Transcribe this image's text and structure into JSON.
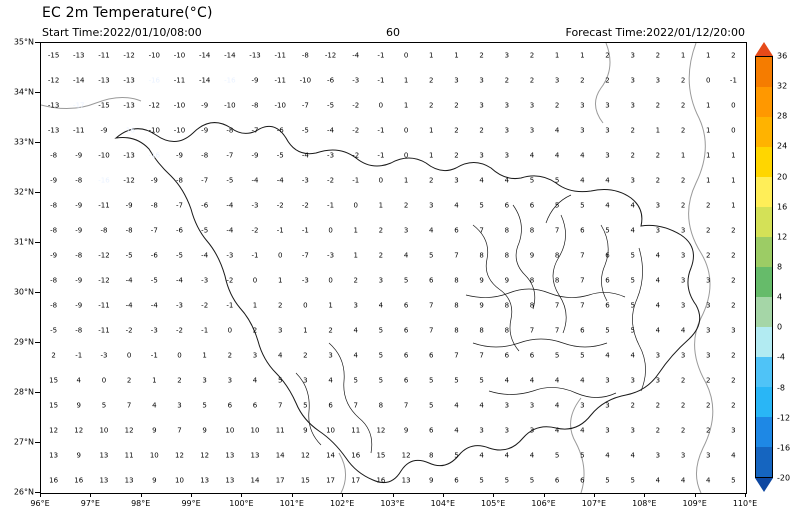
{
  "header": {
    "title": "EC 2m Temperature(°C)",
    "start_time": "Start Time:2022/01/10/08:00",
    "lead_hour": "60",
    "forecast_time": "Forecast Time:2022/01/12/20:00"
  },
  "axes": {
    "x_ticks": [
      "96°E",
      "97°E",
      "98°E",
      "99°E",
      "100°E",
      "101°E",
      "102°E",
      "103°E",
      "104°E",
      "105°E",
      "106°E",
      "107°E",
      "108°E",
      "109°E",
      "110°E"
    ],
    "y_ticks": [
      "35°N",
      "34°N",
      "33°N",
      "32°N",
      "31°N",
      "30°N",
      "29°N",
      "28°N",
      "27°N",
      "26°N"
    ]
  },
  "colorbar": {
    "labels": [
      "36",
      "32",
      "28",
      "24",
      "20",
      "16",
      "12",
      "8",
      "4",
      "0",
      "-4",
      "-8",
      "-12",
      "-16",
      "-20"
    ],
    "colors": [
      "#f57c00",
      "#ff9800",
      "#ffb300",
      "#ffd600",
      "#ffee58",
      "#d4e157",
      "#9ccc65",
      "#66bb6a",
      "#a5d6a7",
      "#b2ebf2",
      "#4fc3f7",
      "#29b6f6",
      "#1e88e5",
      "#1565c0"
    ],
    "arrow_top": "#e64a19",
    "arrow_bottom": "#0d47a1"
  },
  "chart_data": {
    "type": "heatmap",
    "title": "EC 2m Temperature(°C)",
    "units": "°C",
    "x_range": [
      96,
      110
    ],
    "y_range": [
      26,
      35
    ],
    "grid_step": 0.5,
    "grid_lon_start": 96.25,
    "grid_lat_start": 34.75,
    "colorbar_levels": [
      -20,
      -16,
      -12,
      -8,
      -4,
      0,
      4,
      8,
      12,
      16,
      20,
      24,
      28,
      32,
      36
    ],
    "legend_position": "right",
    "values": [
      [
        -15,
        -13,
        -11,
        -12,
        -10,
        -10,
        -14,
        -14,
        -13,
        -11,
        -8,
        -12,
        -4,
        -1,
        0,
        1,
        1,
        2,
        3,
        2,
        1,
        1,
        2,
        3,
        2,
        1,
        1,
        2
      ],
      [
        -12,
        -14,
        -13,
        -13,
        -16,
        -11,
        -14,
        -16,
        -9,
        -11,
        -10,
        -6,
        -3,
        -1,
        1,
        2,
        3,
        3,
        2,
        2,
        3,
        2,
        2,
        3,
        3,
        2,
        0,
        -1
      ],
      [
        -13,
        -17,
        -15,
        -13,
        -12,
        -10,
        -9,
        -10,
        -8,
        -10,
        -7,
        -5,
        -2,
        0,
        1,
        2,
        2,
        3,
        3,
        3,
        2,
        3,
        3,
        3,
        2,
        2,
        1,
        0
      ],
      [
        -13,
        -11,
        -9,
        -16,
        -10,
        -10,
        -9,
        -8,
        -7,
        -6,
        -5,
        -4,
        -2,
        -1,
        0,
        1,
        2,
        2,
        3,
        3,
        4,
        3,
        3,
        2,
        1,
        2,
        1,
        0
      ],
      [
        -8,
        -9,
        -10,
        -13,
        -16,
        -9,
        -8,
        -7,
        -9,
        -5,
        -4,
        -3,
        -2,
        -1,
        0,
        1,
        2,
        3,
        3,
        4,
        4,
        4,
        3,
        2,
        2,
        1,
        1,
        1
      ],
      [
        -9,
        -8,
        -16,
        -12,
        -9,
        -8,
        -7,
        -5,
        -4,
        -4,
        -3,
        -2,
        -1,
        0,
        1,
        2,
        3,
        4,
        4,
        5,
        5,
        4,
        4,
        3,
        2,
        2,
        1,
        1
      ],
      [
        -8,
        -9,
        -11,
        -9,
        -8,
        -7,
        -6,
        -4,
        -3,
        -2,
        -2,
        -1,
        0,
        1,
        2,
        3,
        4,
        5,
        6,
        6,
        5,
        5,
        4,
        4,
        3,
        2,
        2,
        1
      ],
      [
        -8,
        -9,
        -8,
        -8,
        -7,
        -6,
        -5,
        -4,
        -2,
        -1,
        -1,
        0,
        1,
        2,
        3,
        4,
        6,
        7,
        8,
        8,
        7,
        6,
        5,
        4,
        3,
        3,
        2,
        2
      ],
      [
        -9,
        -8,
        -12,
        -5,
        -6,
        -5,
        -4,
        -3,
        -1,
        0,
        -7,
        -3,
        1,
        2,
        4,
        5,
        7,
        8,
        8,
        9,
        8,
        7,
        6,
        5,
        4,
        3,
        2,
        2
      ],
      [
        -8,
        -9,
        -12,
        -4,
        -5,
        -4,
        -3,
        -2,
        0,
        1,
        -3,
        0,
        2,
        3,
        5,
        6,
        8,
        9,
        9,
        8,
        8,
        7,
        6,
        5,
        4,
        3,
        3,
        2
      ],
      [
        -8,
        -9,
        -11,
        -4,
        -4,
        -3,
        -2,
        -1,
        1,
        2,
        0,
        1,
        3,
        4,
        6,
        7,
        8,
        9,
        8,
        8,
        7,
        7,
        6,
        5,
        4,
        3,
        3,
        2
      ],
      [
        -5,
        -8,
        -11,
        -2,
        -3,
        -2,
        -1,
        0,
        2,
        3,
        1,
        2,
        4,
        5,
        6,
        7,
        8,
        8,
        8,
        7,
        7,
        6,
        5,
        5,
        4,
        4,
        3,
        3
      ],
      [
        2,
        -1,
        -3,
        0,
        -1,
        0,
        1,
        2,
        3,
        4,
        2,
        3,
        4,
        5,
        6,
        6,
        7,
        7,
        6,
        6,
        5,
        5,
        4,
        4,
        3,
        3,
        3,
        2
      ],
      [
        15,
        4,
        0,
        2,
        1,
        2,
        3,
        3,
        4,
        5,
        3,
        4,
        5,
        5,
        6,
        5,
        5,
        5,
        4,
        4,
        4,
        4,
        3,
        3,
        3,
        2,
        2,
        2
      ],
      [
        15,
        9,
        5,
        7,
        4,
        3,
        5,
        6,
        6,
        7,
        5,
        6,
        7,
        8,
        7,
        5,
        4,
        4,
        3,
        3,
        4,
        3,
        3,
        2,
        2,
        2,
        2,
        2
      ],
      [
        12,
        12,
        10,
        12,
        9,
        7,
        9,
        10,
        10,
        11,
        9,
        10,
        11,
        12,
        9,
        6,
        4,
        3,
        3,
        3,
        4,
        4,
        3,
        3,
        2,
        2,
        2,
        3
      ],
      [
        13,
        9,
        13,
        11,
        10,
        12,
        12,
        13,
        13,
        14,
        12,
        14,
        16,
        15,
        12,
        8,
        5,
        4,
        4,
        4,
        5,
        5,
        4,
        4,
        3,
        3,
        3,
        4
      ],
      [
        16,
        16,
        13,
        13,
        9,
        10,
        13,
        13,
        14,
        17,
        15,
        17,
        17,
        16,
        13,
        9,
        6,
        5,
        5,
        5,
        6,
        6,
        5,
        5,
        4,
        4,
        4,
        5
      ]
    ]
  }
}
